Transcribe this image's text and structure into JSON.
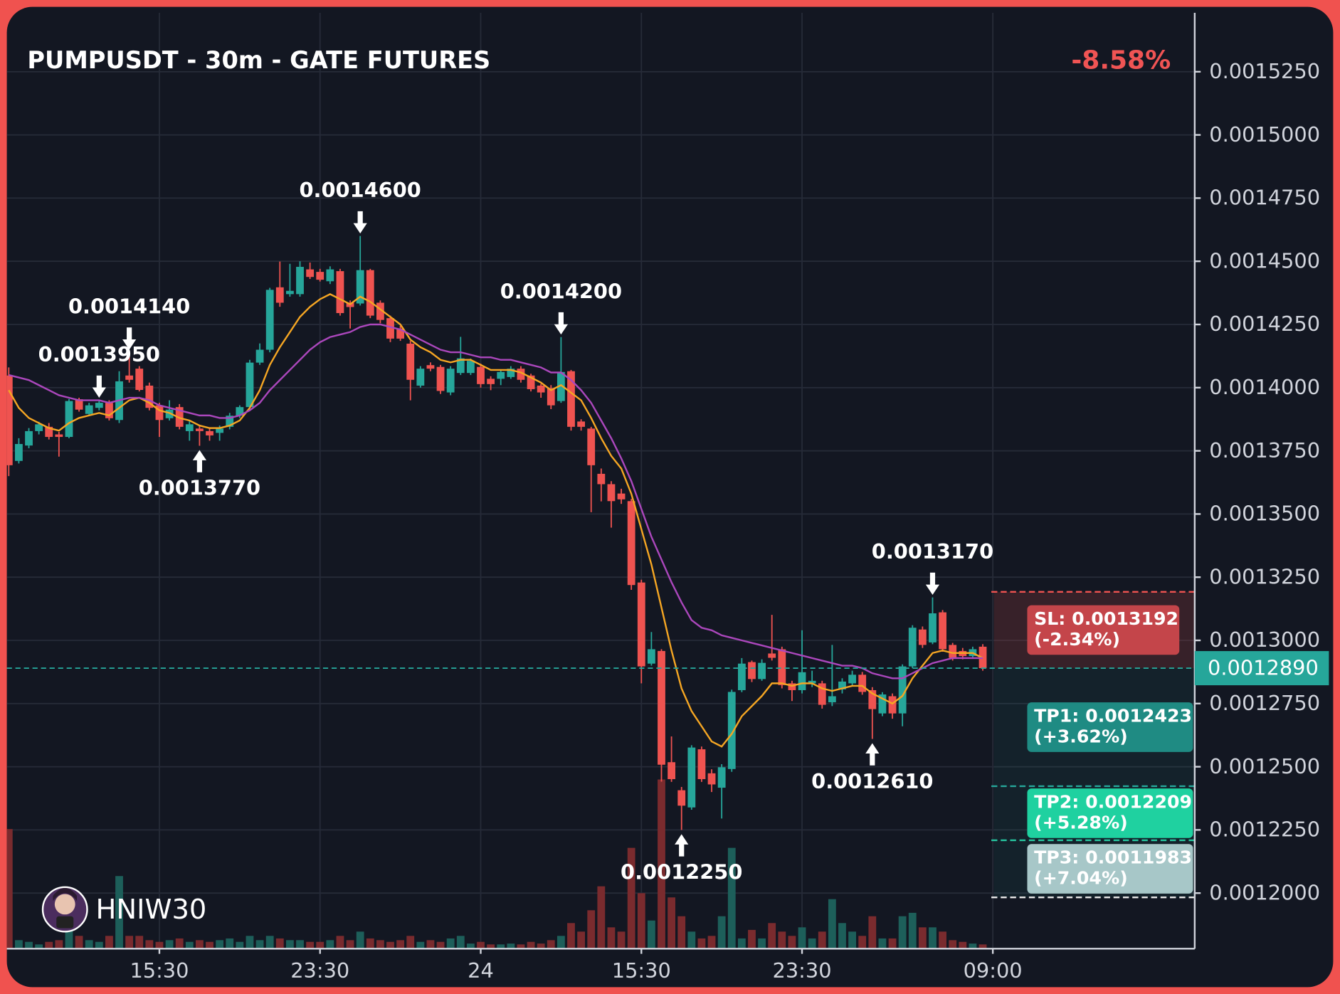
{
  "chart_data": {
    "type": "candlestick",
    "title": "PUMPUSDT - 30m - GATE FUTURES",
    "change": "-8.58%",
    "watermark": "HNIW30",
    "up_color": "#26a69a",
    "down_color": "#ef5350",
    "volume_up_color": "#1d5f5a",
    "volume_down_color": "#7a2b2e",
    "grid": true,
    "ylim": [
      0.001178,
      0.00155
    ],
    "yticks": [
      {
        "value": 0.001525,
        "label": "0.0015250"
      },
      {
        "value": 0.0015,
        "label": "0.0015000"
      },
      {
        "value": 0.001475,
        "label": "0.0014750"
      },
      {
        "value": 0.00145,
        "label": "0.0014500"
      },
      {
        "value": 0.001425,
        "label": "0.0014250"
      },
      {
        "value": 0.0014,
        "label": "0.0014000"
      },
      {
        "value": 0.001375,
        "label": "0.0013750"
      },
      {
        "value": 0.00135,
        "label": "0.0013500"
      },
      {
        "value": 0.001325,
        "label": "0.0013250"
      },
      {
        "value": 0.0013,
        "label": "0.0013000"
      },
      {
        "value": 0.001275,
        "label": "0.0012750"
      },
      {
        "value": 0.00125,
        "label": "0.0012500"
      },
      {
        "value": 0.001225,
        "label": "0.0012250"
      },
      {
        "value": 0.0012,
        "label": "0.0012000"
      }
    ],
    "categories": [
      null,
      null,
      null,
      null,
      null,
      null,
      null,
      null,
      null,
      null,
      null,
      null,
      null,
      null,
      null,
      "15:30",
      null,
      null,
      null,
      null,
      null,
      null,
      null,
      null,
      null,
      null,
      null,
      null,
      null,
      null,
      null,
      "23:30",
      null,
      null,
      null,
      null,
      null,
      null,
      null,
      null,
      null,
      null,
      null,
      null,
      null,
      null,
      null,
      "24",
      null,
      null,
      null,
      null,
      null,
      null,
      null,
      null,
      null,
      null,
      null,
      null,
      null,
      null,
      null,
      "15:30",
      null,
      null,
      null,
      null,
      null,
      null,
      null,
      null,
      null,
      null,
      null,
      null,
      null,
      null,
      null,
      "23:30",
      null,
      null,
      null,
      null,
      null,
      null,
      null,
      null,
      null,
      null,
      null,
      null,
      null,
      null,
      null,
      null,
      null,
      null,
      "09:00"
    ],
    "open": [
      0.0014048,
      0.001371,
      0.0013771,
      0.0013828,
      0.0013845,
      0.0013815,
      0.0013805,
      0.0013954,
      0.0013896,
      0.001392,
      0.001394,
      0.0013872,
      0.0014048,
      0.0014075,
      0.0014008,
      0.001393,
      0.0013879,
      0.0013923,
      0.0013828,
      0.0013838,
      0.0013828,
      0.0013821,
      0.0013845,
      0.0013889,
      0.0013923,
      0.0014099,
      0.001415,
      0.0014397,
      0.001437,
      0.001437,
      0.0014468,
      0.0014458,
      0.0014421,
      0.0014461,
      0.0014336,
      0.0014333,
      0.0014465,
      0.0014336,
      0.0014275,
      0.0014234,
      0.0014174,
      0.0014008,
      0.0014089,
      0.0014082,
      0.0013981,
      0.0014058,
      0.0014058,
      0.0014082,
      0.0014035,
      0.0014035,
      0.0014042,
      0.0014075,
      0.0014048,
      0.0014008,
      0.0013998,
      0.0013947,
      0.0014065,
      0.0013866,
      0.0013838,
      0.0013659,
      0.0013618,
      0.0013581,
      0.0013551,
      0.0013229,
      0.0012908,
      0.0012958,
      0.0012518,
      0.0012407,
      0.0012339,
      0.0012569,
      0.0012474,
      0.0012417,
      0.0012491,
      0.0012803,
      0.0012914,
      0.0012847,
      0.0012948,
      0.0012965,
      0.001283,
      0.0012803,
      0.001283,
      0.001283,
      0.0012755,
      0.0012806,
      0.001283,
      0.0012864,
      0.0012803,
      0.0012711,
      0.0012779,
      0.0012711,
      0.0012897,
      0.0013043,
      0.0012992,
      0.0013111,
      0.0012982,
      0.0012958,
      0.0012938,
      0.0012975,
      null
    ],
    "high": [
      0.001408,
      0.00138,
      0.001384,
      0.0013865,
      0.001386,
      0.0013825,
      0.0013955,
      0.001396,
      0.001394,
      0.001395,
      0.001395,
      0.0014065,
      0.001414,
      0.0014085,
      0.001402,
      0.001394,
      0.001395,
      0.0013935,
      0.001387,
      0.001385,
      0.001384,
      0.001385,
      0.00139,
      0.001393,
      0.001411,
      0.0014175,
      0.0014395,
      0.0014499,
      0.001449,
      0.00145,
      0.0014495,
      0.001447,
      0.001448,
      0.001447,
      0.0014345,
      0.00146,
      0.001447,
      0.0014345,
      0.0014285,
      0.0014245,
      0.0014185,
      0.0014085,
      0.00141,
      0.001409,
      0.0014085,
      0.0014201,
      0.0014115,
      0.0014095,
      0.0014045,
      0.001407,
      0.0014085,
      0.0014085,
      0.0014055,
      0.0014015,
      0.001401,
      0.00142,
      0.001407,
      0.0013875,
      0.0013845,
      0.001368,
      0.001363,
      0.00136,
      0.001356,
      0.001324,
      0.0013033,
      0.0012965,
      0.001262,
      0.001242,
      0.0012585,
      0.001258,
      0.001249,
      0.001251,
      0.0012805,
      0.001293,
      0.001292,
      0.0012925,
      0.0013101,
      0.0012975,
      0.001284,
      0.001304,
      0.001288,
      0.001284,
      0.0012982,
      0.001285,
      0.001288,
      0.0012875,
      0.0012815,
      0.0012795,
      0.001279,
      0.0012905,
      0.001306,
      0.0013055,
      0.001317,
      0.001312,
      0.001299,
      0.001297,
      0.0012975,
      0.0012985,
      null
    ],
    "low": [
      0.001365,
      0.00137,
      0.001376,
      0.0013815,
      0.0013795,
      0.0013727,
      0.00138,
      0.0013905,
      0.001389,
      0.001391,
      0.001387,
      0.001386,
      0.001402,
      0.0013985,
      0.001391,
      0.0013805,
      0.001387,
      0.0013835,
      0.001379,
      0.001377,
      0.001379,
      0.001379,
      0.0013835,
      0.001388,
      0.0013915,
      0.001409,
      0.001414,
      0.001432,
      0.001436,
      0.001436,
      0.001443,
      0.001442,
      0.001441,
      0.0014285,
      0.0014234,
      0.0014325,
      0.0014275,
      0.0014255,
      0.001418,
      0.0014185,
      0.001395,
      0.0014,
      0.0014065,
      0.0013975,
      0.001397,
      0.001405,
      0.001405,
      0.0014,
      0.001399,
      0.001401,
      0.0014035,
      0.001402,
      0.0013985,
      0.001396,
      0.0013915,
      0.001394,
      0.001383,
      0.001383,
      0.0013507,
      0.001355,
      0.0013446,
      0.001354,
      0.00132,
      0.001283,
      0.00129,
      0.0012441,
      0.001244,
      0.001225,
      0.001233,
      0.001244,
      0.00124,
      0.0012295,
      0.001248,
      0.0012795,
      0.0012835,
      0.001284,
      0.001292,
      0.001281,
      0.001276,
      0.001279,
      0.0012815,
      0.001273,
      0.001274,
      0.001279,
      0.001282,
      0.0012785,
      0.001261,
      0.00127,
      0.001269,
      0.001266,
      0.001289,
      0.001297,
      0.0012985,
      0.0012955,
      0.001292,
      0.0012925,
      0.001293,
      0.001288,
      null
    ],
    "close": [
      0.0013693,
      0.0013777,
      0.0013828,
      0.0013855,
      0.0013805,
      0.0013805,
      0.0013947,
      0.0013913,
      0.001393,
      0.001394,
      0.0013879,
      0.0014025,
      0.0014031,
      0.0013991,
      0.001392,
      0.0013872,
      0.0013913,
      0.0013845,
      0.0013855,
      0.0013828,
      0.0013811,
      0.0013838,
      0.0013889,
      0.0013923,
      0.0014099,
      0.001415,
      0.0014387,
      0.0014336,
      0.0014383,
      0.0014478,
      0.0014438,
      0.0014427,
      0.0014468,
      0.0014295,
      0.0014319,
      0.0014465,
      0.0014285,
      0.0014268,
      0.0014194,
      0.0014194,
      0.0014031,
      0.0014075,
      0.0014075,
      0.0013987,
      0.0014075,
      0.0014116,
      0.0014106,
      0.0014014,
      0.0014014,
      0.0014062,
      0.0014075,
      0.0014031,
      0.0013994,
      0.0013981,
      0.001393,
      0.0014062,
      0.0013845,
      0.0013845,
      0.0013693,
      0.0013618,
      0.0013551,
      0.0013558,
      0.0013219,
      0.0012897,
      0.0012965,
      0.0012508,
      0.0012451,
      0.0012346,
      0.0012576,
      0.0012451,
      0.001243,
      0.0012498,
      0.0012796,
      0.0012908,
      0.0012847,
      0.0012911,
      0.0012931,
      0.0012823,
      0.0012803,
      0.0012874,
      0.001284,
      0.0012745,
      0.0012779,
      0.0012837,
      0.0012864,
      0.0012796,
      0.0012728,
      0.0012786,
      0.0012711,
      0.0012897,
      0.001305,
      0.0012982,
      0.0013107,
      0.0012965,
      0.0012931,
      0.0012938,
      0.0012965,
      0.001289,
      null
    ],
    "volume": [
      140,
      10,
      8,
      5,
      8,
      10,
      25,
      15,
      10,
      8,
      15,
      85,
      15,
      15,
      10,
      8,
      10,
      12,
      8,
      10,
      8,
      10,
      12,
      8,
      15,
      10,
      15,
      12,
      10,
      10,
      8,
      8,
      10,
      15,
      10,
      20,
      12,
      10,
      8,
      10,
      15,
      8,
      10,
      8,
      12,
      15,
      6,
      8,
      5,
      5,
      6,
      5,
      8,
      6,
      10,
      15,
      30,
      20,
      45,
      73,
      25,
      20,
      118,
      65,
      33,
      198,
      60,
      38,
      20,
      12,
      15,
      38,
      118,
      12,
      22,
      12,
      30,
      20,
      15,
      25,
      12,
      20,
      58,
      30,
      20,
      15,
      38,
      12,
      12,
      38,
      42,
      25,
      25,
      20,
      10,
      8,
      6,
      5,
      null
    ],
    "ema": [
      {
        "color": "#f5a623",
        "values": [
          0.001399,
          0.001392,
          0.001388,
          0.001386,
          0.001384,
          0.001383,
          0.001386,
          0.001388,
          0.001389,
          0.00139,
          0.001389,
          0.001392,
          0.001395,
          0.001396,
          0.001394,
          0.001391,
          0.00139,
          0.001388,
          0.001387,
          0.001385,
          0.001384,
          0.001384,
          0.001385,
          0.001387,
          0.001392,
          0.001399,
          0.001409,
          0.001416,
          0.001422,
          0.001428,
          0.001432,
          0.001435,
          0.001437,
          0.001435,
          0.001433,
          0.001436,
          0.001434,
          0.001431,
          0.001428,
          0.001425,
          0.001419,
          0.001416,
          0.001414,
          0.001411,
          0.00141,
          0.001411,
          0.001411,
          0.001409,
          0.001407,
          0.001407,
          0.001407,
          0.001406,
          0.001404,
          0.001402,
          0.001399,
          0.001401,
          0.001398,
          0.001395,
          0.001388,
          0.00138,
          0.001373,
          0.001368,
          0.001358,
          0.001344,
          0.00133,
          0.001313,
          0.001296,
          0.001281,
          0.001272,
          0.001266,
          0.00126,
          0.001258,
          0.001263,
          0.00127,
          0.001274,
          0.001278,
          0.001283,
          0.001283,
          0.001282,
          0.001283,
          0.001283,
          0.001281,
          0.00128,
          0.001281,
          0.001282,
          0.001282,
          0.001279,
          0.001277,
          0.001275,
          0.001278,
          0.001285,
          0.00129,
          0.001295,
          0.001296,
          0.001295,
          0.001295,
          0.001295,
          0.001293,
          null
        ]
      },
      {
        "color": "#ab47bc",
        "values": [
          0.001405,
          0.001404,
          0.001403,
          0.001401,
          0.001399,
          0.001397,
          0.001396,
          0.001395,
          0.001395,
          0.001395,
          0.001394,
          0.001395,
          0.001396,
          0.001396,
          0.001395,
          0.001393,
          0.001392,
          0.001391,
          0.00139,
          0.001389,
          0.001389,
          0.001388,
          0.001388,
          0.001389,
          0.001391,
          0.001394,
          0.001399,
          0.001403,
          0.001407,
          0.001411,
          0.001415,
          0.001418,
          0.00142,
          0.001421,
          0.001422,
          0.001424,
          0.001425,
          0.001425,
          0.001424,
          0.001423,
          0.001421,
          0.001419,
          0.001417,
          0.001415,
          0.001414,
          0.001414,
          0.001413,
          0.001412,
          0.001412,
          0.001411,
          0.001411,
          0.00141,
          0.001409,
          0.001408,
          0.001406,
          0.001406,
          0.001403,
          0.001399,
          0.001394,
          0.001387,
          0.00138,
          0.001372,
          0.001363,
          0.001352,
          0.001341,
          0.001332,
          0.001323,
          0.001315,
          0.001308,
          0.001305,
          0.001304,
          0.001302,
          0.001301,
          0.0013,
          0.001299,
          0.001298,
          0.001297,
          0.001296,
          0.001295,
          0.001294,
          0.001293,
          0.001292,
          0.001291,
          0.00129,
          0.00129,
          0.001289,
          0.001287,
          0.001286,
          0.001285,
          0.001285,
          0.001287,
          0.001289,
          0.001291,
          0.001292,
          0.001293,
          0.001293,
          0.001293,
          0.001293,
          null
        ]
      }
    ],
    "annotations": [
      {
        "value": 0.001414,
        "label": "0.0014140"
      },
      {
        "value": 0.001377,
        "label": "0.0013770"
      },
      {
        "value": 0.00146,
        "label": "0.0014600"
      },
      {
        "value": 0.001395,
        "label": "0.0013950"
      },
      {
        "value": 0.00142,
        "label": "0.0014200"
      },
      {
        "value": 0.001225,
        "label": "0.0012250"
      },
      {
        "value": 0.001261,
        "label": "0.0012610"
      },
      {
        "value": 0.001317,
        "label": "0.0013170"
      }
    ],
    "last_price": {
      "value": 0.001289,
      "label": "0.0012890",
      "color": "#26a69a"
    },
    "levels": [
      {
        "value": 0.0013192,
        "label": "SL: 0.0013192",
        "change": "(-2.34%)",
        "color": "#c4454a",
        "line_color": "#ef5350"
      },
      {
        "value": 0.0012423,
        "label": "TP1: 0.0012423",
        "change": "(+3.62%)",
        "color": "#1f8b83",
        "line_color": "#26a69a"
      },
      {
        "value": 0.0012209,
        "label": "TP2: 0.0012209",
        "change": "(+5.28%)",
        "color": "#1fd1a0",
        "line_color": "#26c6a0"
      },
      {
        "value": 0.0011983,
        "label": "TP3: 0.0011983",
        "change": "(+7.04%)",
        "color": "#a7c7c8",
        "line_color": "#e8e8e8"
      }
    ]
  }
}
